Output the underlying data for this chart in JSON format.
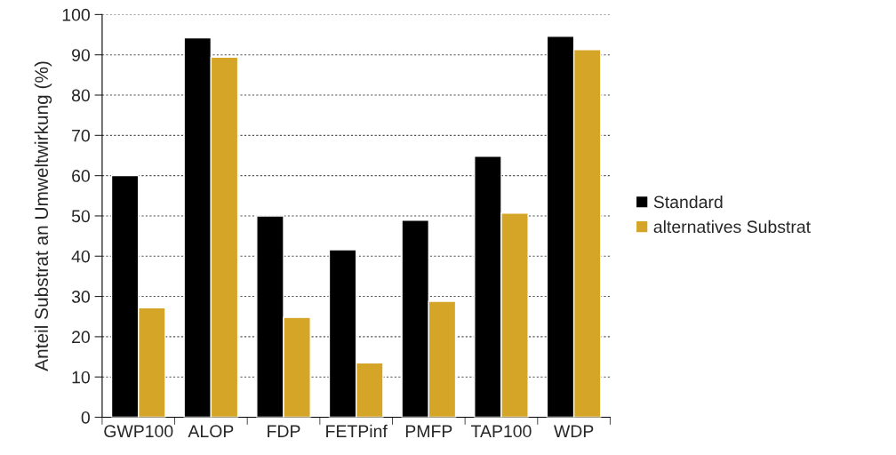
{
  "chart_data": {
    "type": "bar",
    "ylabel": "Anteil Substrat an Umweltwirkung (%)",
    "categories": [
      "GWP100",
      "ALOP",
      "FDP",
      "FETPinf",
      "PMFP",
      "TAP100",
      "WDP"
    ],
    "series": [
      {
        "name": "Standard",
        "color": "#000000",
        "values": [
          60,
          94.2,
          50,
          41.6,
          48.9,
          64.8,
          94.6
        ]
      },
      {
        "name": "alternatives Substrat",
        "color": "#d4a526",
        "values": [
          27.2,
          89.4,
          24.8,
          13.5,
          28.8,
          50.7,
          91.3
        ]
      }
    ],
    "ylim": [
      0,
      100
    ],
    "yticks": [
      0,
      10,
      20,
      30,
      40,
      50,
      60,
      70,
      80,
      90,
      100
    ],
    "grid": "y",
    "legend": "right"
  }
}
